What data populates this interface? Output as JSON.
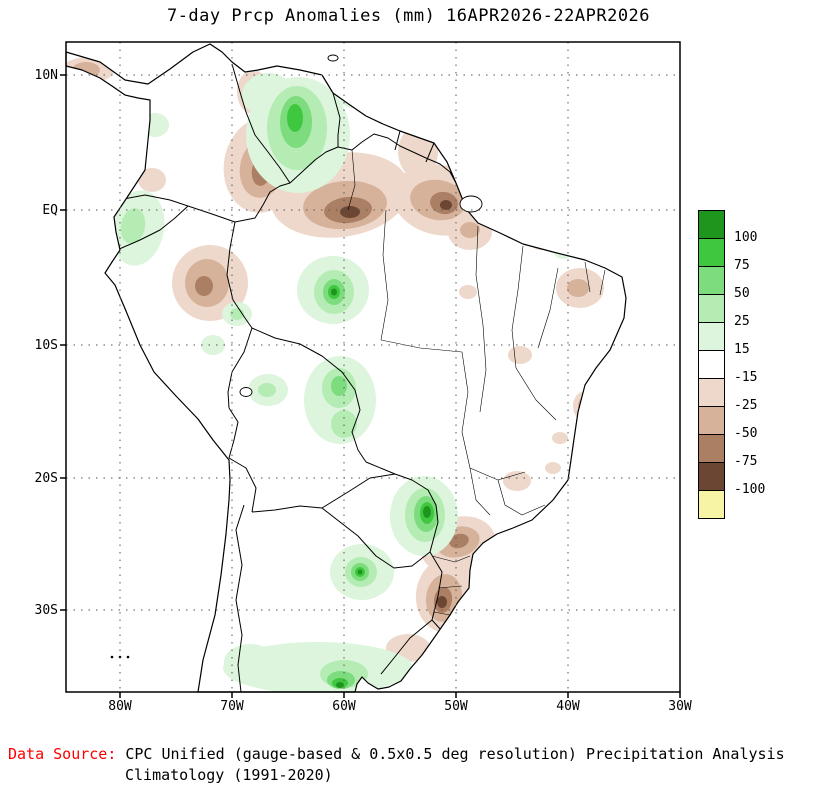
{
  "title": "7-day Prcp Anomalies (mm) 16APR2026-22APR2026",
  "axes": {
    "lat_ticks": [
      "10N",
      "EQ",
      "10S",
      "20S",
      "30S"
    ],
    "lon_ticks": [
      "80W",
      "70W",
      "60W",
      "50W",
      "40W",
      "30W"
    ]
  },
  "legend": {
    "labels": [
      "100",
      "75",
      "50",
      "25",
      "15",
      "-15",
      "-25",
      "-50",
      "-75",
      "-100"
    ],
    "colors": [
      "#1e961e",
      "#3fc83f",
      "#7ddc7d",
      "#b4ecb4",
      "#dcf5dc",
      "#ffffff",
      "#eed8cb",
      "#d6b29b",
      "#ab7f63",
      "#6b4632",
      "#f8f4a6"
    ]
  },
  "footer": {
    "label": "Data Source:",
    "label_color": "#ff0000",
    "line1": "CPC Unified (gauge-based & 0.5x0.5 deg resolution) Precipitation Analysis",
    "line2": "Climatology (1991-2020)"
  }
}
